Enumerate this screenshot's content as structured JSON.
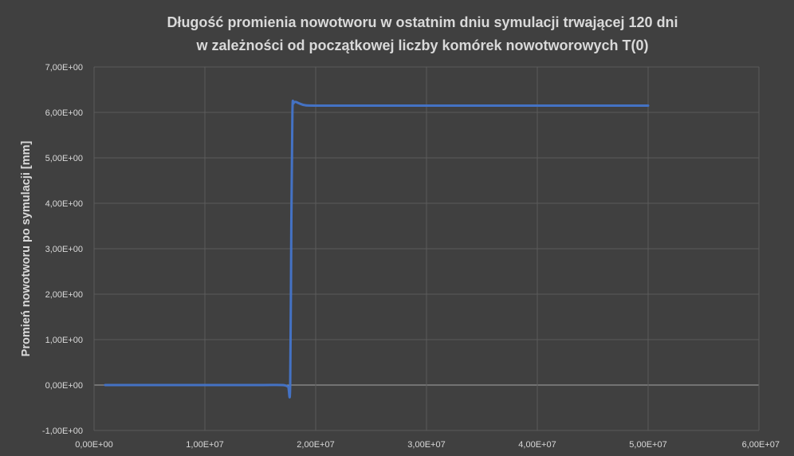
{
  "chart_data": {
    "type": "line",
    "title_lines": [
      "Długość promienia nowotworu w ostatnim dniu symulacji trwającej 120 dni",
      "w zależności od początkowej liczby komórek nowotworowych T(0)"
    ],
    "xlabel": "",
    "ylabel": "Promień nowotworu po symulacji [mm]",
    "xlim": [
      0,
      60000000
    ],
    "ylim": [
      -1,
      7
    ],
    "x_ticks": [
      0,
      10000000,
      20000000,
      30000000,
      40000000,
      50000000,
      60000000
    ],
    "x_tick_labels": [
      "0,00E+00",
      "1,00E+07",
      "2,00E+07",
      "3,00E+07",
      "4,00E+07",
      "5,00E+07",
      "6,00E+07"
    ],
    "y_ticks": [
      -1,
      0,
      1,
      2,
      3,
      4,
      5,
      6,
      7
    ],
    "y_tick_labels": [
      "-1,00E+00",
      "0,00E+00",
      "1,00E+00",
      "2,00E+00",
      "3,00E+00",
      "4,00E+00",
      "5,00E+00",
      "6,00E+00",
      "7,00E+00"
    ],
    "grid": true,
    "legend": "none",
    "colors": {
      "background": "#404040",
      "series": "#4472c4",
      "grid": "#5a5a5a",
      "zero_line": "#a6a6a6",
      "text": "#d9d9d9"
    },
    "series": [
      {
        "x": [
          1000000,
          5000000,
          10000000,
          15000000,
          17000000,
          17500000,
          17700000,
          17800000,
          17900000,
          18000000,
          18200000,
          18500000,
          19000000,
          20000000,
          25000000,
          30000000,
          40000000,
          50000000
        ],
        "y": [
          0,
          0,
          0,
          0,
          0,
          -0.03,
          0,
          3.5,
          6.0,
          6.2,
          6.23,
          6.2,
          6.16,
          6.15,
          6.15,
          6.15,
          6.15,
          6.15
        ]
      }
    ]
  }
}
